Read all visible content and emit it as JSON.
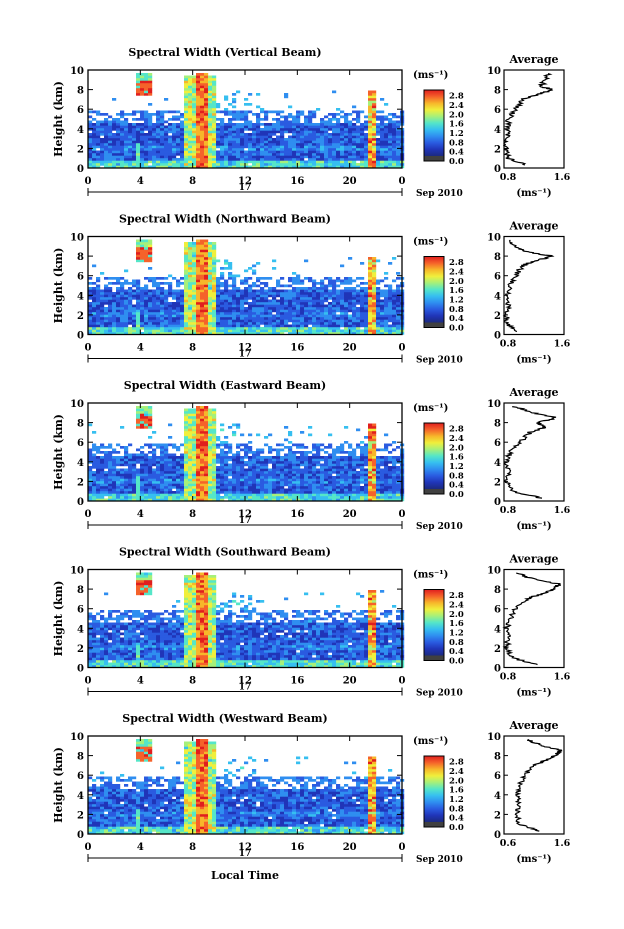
{
  "figure": {
    "xlabel": "Local Time",
    "date_label": "17",
    "month_label": "Sep 2010",
    "x_ticks": [
      "0",
      "4",
      "8",
      "12",
      "16",
      "20",
      "0"
    ],
    "y_ticks": [
      "0",
      "2",
      "4",
      "6",
      "8",
      "10"
    ],
    "colorbar_unit": "(ms⁻¹)",
    "colorbar_ticks": [
      "0.0",
      "0.4",
      "0.8",
      "1.2",
      "1.6",
      "2.0",
      "2.4",
      "2.8"
    ],
    "avg_title": "Average",
    "avg_unit": "(ms⁻¹)",
    "avg_ticks": [
      "0.8",
      "1.6"
    ]
  },
  "chart_data": [
    {
      "type": "heatmap",
      "title": "Spectral Width (Vertical Beam)",
      "ylabel": "Height (km)",
      "xlabel": "",
      "x_range_hours": [
        0,
        24
      ],
      "ylim": [
        0,
        10
      ],
      "color_range": [
        0.0,
        2.8
      ],
      "average_profile": {
        "xlim": [
          0.8,
          1.6
        ],
        "heights": [
          0.3,
          1.0,
          2.0,
          3.0,
          4.0,
          5.0,
          6.0,
          7.0,
          7.5,
          8.0,
          8.3,
          9.0,
          9.7
        ],
        "values": [
          1.1,
          0.85,
          0.82,
          0.84,
          0.85,
          0.86,
          0.95,
          1.05,
          1.25,
          1.45,
          1.3,
          1.35,
          1.4
        ]
      }
    },
    {
      "type": "heatmap",
      "title": "Spectral Width (Northward Beam)",
      "ylabel": "Height (km)",
      "xlabel": "",
      "x_range_hours": [
        0,
        24
      ],
      "ylim": [
        0,
        10
      ],
      "color_range": [
        0.0,
        2.8
      ],
      "average_profile": {
        "xlim": [
          0.8,
          1.6
        ],
        "heights": [
          0.3,
          1.0,
          2.0,
          3.0,
          4.0,
          5.0,
          6.0,
          7.0,
          7.5,
          8.0,
          8.5,
          9.0,
          9.7
        ],
        "values": [
          1.0,
          0.85,
          0.83,
          0.86,
          0.84,
          0.87,
          0.95,
          1.05,
          1.2,
          1.45,
          1.05,
          0.95,
          0.85
        ]
      }
    },
    {
      "type": "heatmap",
      "title": "Spectral Width (Eastward Beam)",
      "ylabel": "Height (km)",
      "xlabel": "",
      "x_range_hours": [
        0,
        24
      ],
      "ylim": [
        0,
        10
      ],
      "color_range": [
        0.0,
        2.8
      ],
      "average_profile": {
        "xlim": [
          0.8,
          1.6
        ],
        "heights": [
          0.3,
          1.0,
          2.0,
          3.0,
          4.0,
          5.0,
          6.0,
          7.0,
          7.5,
          8.0,
          8.5,
          9.0,
          9.7
        ],
        "values": [
          1.3,
          0.9,
          0.83,
          0.85,
          0.84,
          0.88,
          1.0,
          1.15,
          1.35,
          1.25,
          1.5,
          1.2,
          0.9
        ]
      }
    },
    {
      "type": "heatmap",
      "title": "Spectral Width (Southward Beam)",
      "ylabel": "Height (km)",
      "xlabel": "",
      "x_range_hours": [
        0,
        24
      ],
      "ylim": [
        0,
        10
      ],
      "color_range": [
        0.0,
        2.8
      ],
      "average_profile": {
        "xlim": [
          0.8,
          1.6
        ],
        "heights": [
          0.3,
          1.0,
          2.0,
          3.0,
          4.0,
          5.0,
          6.0,
          7.0,
          7.5,
          8.0,
          8.5,
          9.0,
          9.7
        ],
        "values": [
          1.25,
          0.9,
          0.84,
          0.85,
          0.84,
          0.88,
          0.95,
          1.1,
          1.3,
          1.45,
          1.55,
          1.2,
          0.95
        ]
      }
    },
    {
      "type": "heatmap",
      "title": "Spectral Width (Westward Beam)",
      "ylabel": "Height (km)",
      "xlabel": "Local Time",
      "x_range_hours": [
        0,
        24
      ],
      "ylim": [
        0,
        10
      ],
      "color_range": [
        0.0,
        2.8
      ],
      "average_profile": {
        "xlim": [
          0.6,
          1.6
        ],
        "heights": [
          0.3,
          1.0,
          2.0,
          3.0,
          4.0,
          5.0,
          6.0,
          7.0,
          7.5,
          8.0,
          8.5,
          9.0,
          9.7
        ],
        "values": [
          1.2,
          0.85,
          0.82,
          0.84,
          0.83,
          0.86,
          0.95,
          1.1,
          1.3,
          1.45,
          1.55,
          1.25,
          0.95
        ]
      }
    }
  ],
  "colors": {
    "colormap": [
      "#1c2a80",
      "#2035b8",
      "#2a5be0",
      "#2f8ef0",
      "#36bff0",
      "#55e6c8",
      "#a6f07a",
      "#f0ef3c",
      "#f7b62a",
      "#f5622a",
      "#e01e1e"
    ],
    "under": "#404040"
  }
}
